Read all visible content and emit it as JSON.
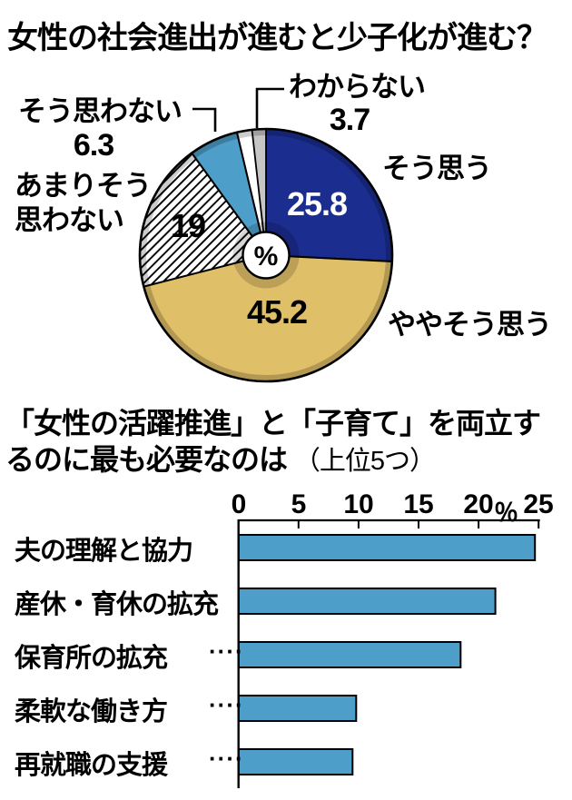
{
  "colors": {
    "navy": "#1b2d8f",
    "gold": "#e0bf69",
    "steel_blue": "#4d9ec9",
    "sliver_gray": "#c6c6c6",
    "hatch_background": "#ffffff",
    "outline": "#000000"
  },
  "chart_data": [
    {
      "type": "pie",
      "title": "女性の社会進出が進むと少子化が進む？",
      "center_label": "%",
      "slices": [
        {
          "label": "そう思う",
          "value": 25.8,
          "value_label": "25.8",
          "color": "#1b2d8f",
          "pattern": "solid"
        },
        {
          "label": "ややそう思う",
          "value": 45.2,
          "value_label": "45.2",
          "color": "#e0bf69",
          "pattern": "solid"
        },
        {
          "label": "あまりそう\n思わない",
          "value": 19,
          "value_label": "19",
          "color": "#ffffff",
          "pattern": "hatch"
        },
        {
          "label": "そう思わない",
          "value": 6.3,
          "value_label": "6.3",
          "color": "#4d9ec9",
          "pattern": "solid"
        },
        {
          "label": "わからない",
          "value": 3.7,
          "value_label": "3.7",
          "color": "#ffffff",
          "pattern": "solid"
        }
      ]
    },
    {
      "type": "bar",
      "title_lines": [
        "「女性の活躍推進」と「子育て」を両立す",
        "るのに最も必要なのは"
      ],
      "title_note": "（上位5つ）",
      "categories": [
        "夫の理解と協力",
        "産休・育休の拡充",
        "保育所の拡充",
        "柔軟な働き方",
        "再就職の支援"
      ],
      "values": [
        24.7,
        21.4,
        18.5,
        9.8,
        9.5
      ],
      "has_leader_dots": [
        false,
        false,
        true,
        true,
        true
      ],
      "leader_dots": "····",
      "ticks": [
        "0",
        "5",
        "10",
        "15",
        "20",
        "25"
      ],
      "unit": "％",
      "xlim": [
        0,
        25
      ],
      "bar_color": "#4d9ec9",
      "grid": false
    }
  ]
}
